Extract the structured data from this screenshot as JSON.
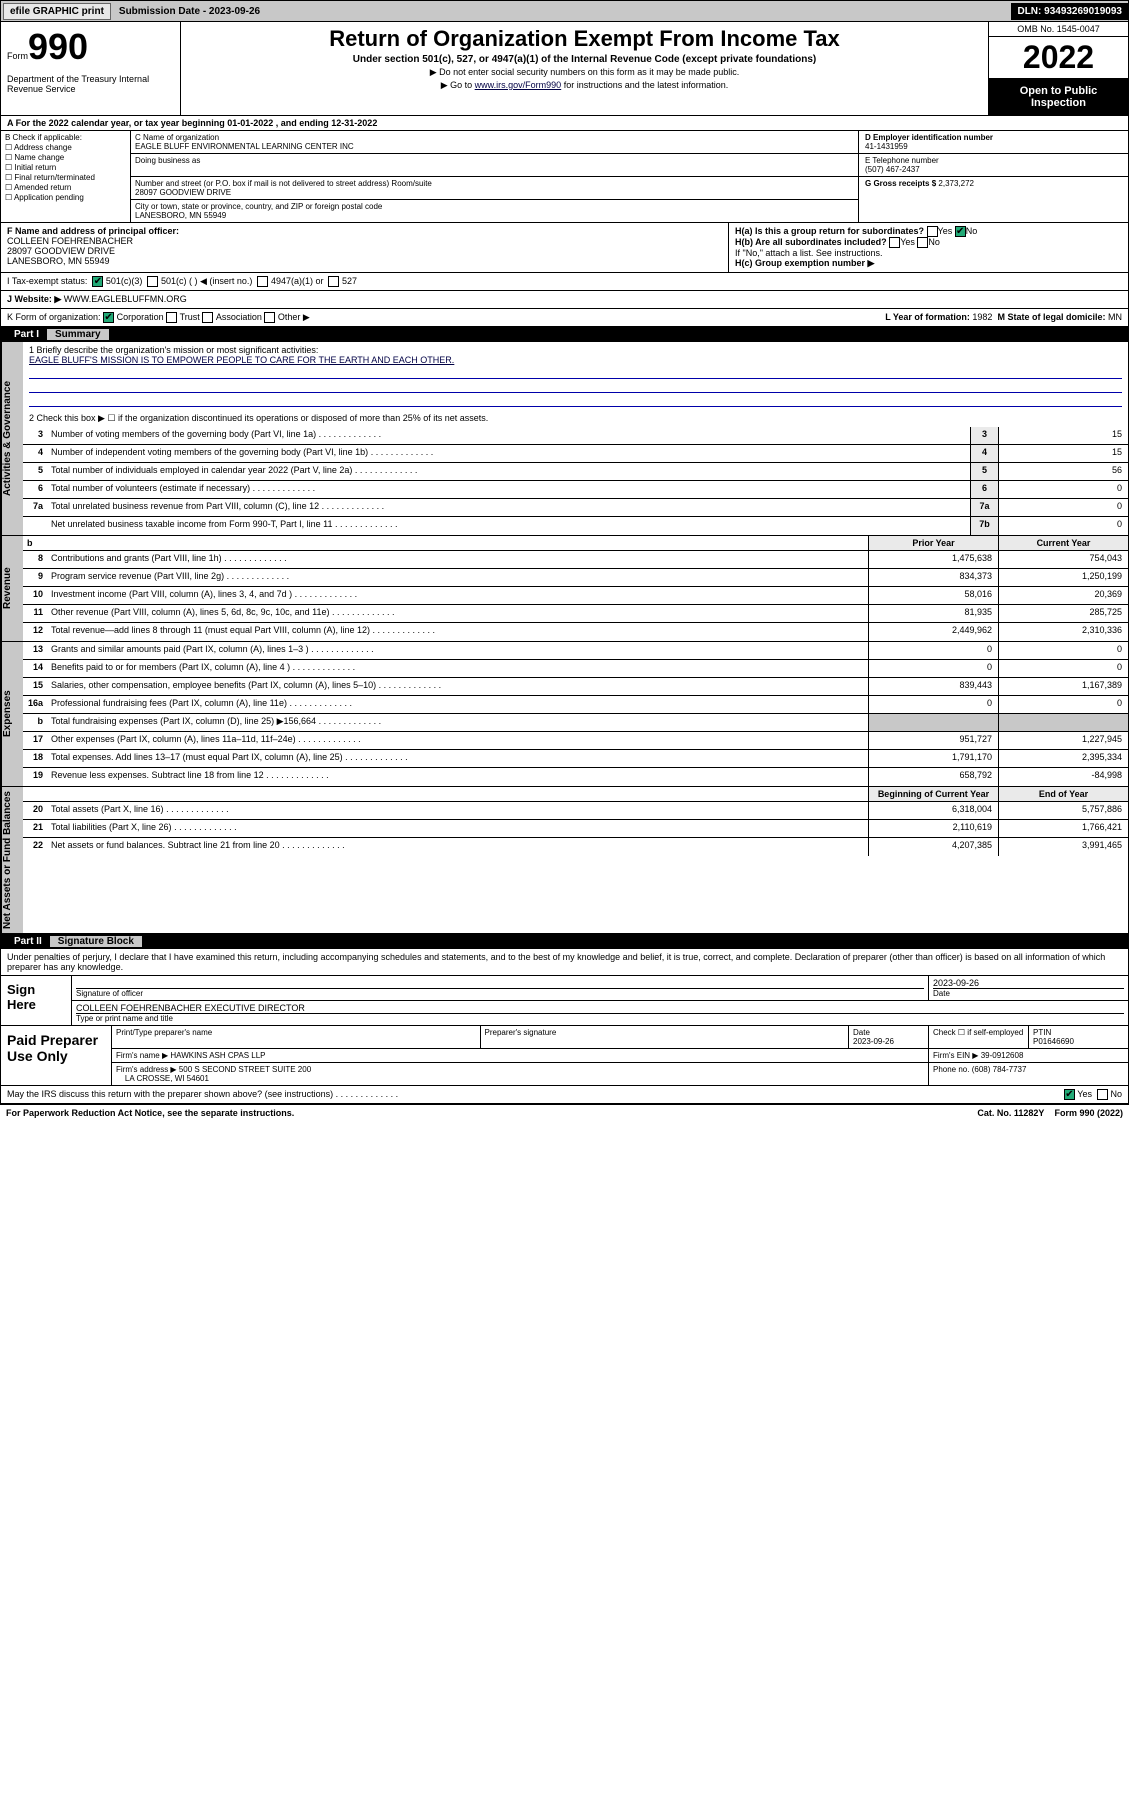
{
  "topbar": {
    "efile": "efile GRAPHIC print",
    "sub_label": "Submission Date - 2023-09-26",
    "dln": "DLN: 93493269019093"
  },
  "header": {
    "form_word": "Form",
    "form_num": "990",
    "dept": "Department of the Treasury\nInternal Revenue Service",
    "title": "Return of Organization Exempt From Income Tax",
    "sub1": "Under section 501(c), 527, or 4947(a)(1) of the Internal Revenue Code (except private foundations)",
    "sub2": "▶ Do not enter social security numbers on this form as it may be made public.",
    "sub3_pre": "▶ Go to ",
    "sub3_link": "www.irs.gov/Form990",
    "sub3_post": " for instructions and the latest information.",
    "omb": "OMB No. 1545-0047",
    "year": "2022",
    "open": "Open to Public Inspection"
  },
  "row_a": "A For the 2022 calendar year, or tax year beginning 01-01-2022   , and ending 12-31-2022",
  "col_b": {
    "title": "B Check if applicable:",
    "items": [
      "Address change",
      "Name change",
      "Initial return",
      "Final return/terminated",
      "Amended return",
      "Application pending"
    ]
  },
  "col_c": {
    "name_lbl": "C Name of organization",
    "name": "EAGLE BLUFF ENVIRONMENTAL LEARNING CENTER INC",
    "dba_lbl": "Doing business as",
    "addr_lbl": "Number and street (or P.O. box if mail is not delivered to street address)    Room/suite",
    "addr": "28097 GOODVIEW DRIVE",
    "city_lbl": "City or town, state or province, country, and ZIP or foreign postal code",
    "city": "LANESBORO, MN  55949"
  },
  "col_d": {
    "ein_lbl": "D Employer identification number",
    "ein": "41-1431959",
    "tel_lbl": "E Telephone number",
    "tel": "(507) 467-2437",
    "gross_lbl": "G Gross receipts $",
    "gross": "2,373,272"
  },
  "section_f": {
    "lbl": "F Name and address of principal officer:",
    "name": "COLLEEN FOEHRENBACHER",
    "addr1": "28097 GOODVIEW DRIVE",
    "addr2": "LANESBORO, MN  55949"
  },
  "section_h": {
    "ha": "H(a)  Is this a group return for subordinates?",
    "ha_yes": "Yes",
    "ha_no": "No",
    "hb": "H(b)  Are all subordinates included?",
    "hb_yes": "Yes",
    "hb_no": "No",
    "hb_note": "If \"No,\" attach a list. See instructions.",
    "hc": "H(c)  Group exemption number ▶"
  },
  "row_i": {
    "lbl": "I   Tax-exempt status:",
    "o1": "501(c)(3)",
    "o2": "501(c) (  ) ◀ (insert no.)",
    "o3": "4947(a)(1) or",
    "o4": "527"
  },
  "row_j": {
    "lbl": "J   Website: ▶",
    "val": "WWW.EAGLEBLUFFMN.ORG"
  },
  "row_k": {
    "lbl": "K Form of organization:",
    "o1": "Corporation",
    "o2": "Trust",
    "o3": "Association",
    "o4": "Other ▶",
    "l_lbl": "L Year of formation:",
    "l_val": "1982",
    "m_lbl": "M State of legal domicile:",
    "m_val": "MN"
  },
  "part1": {
    "num": "Part I",
    "title": "Summary"
  },
  "mission": {
    "line1_lbl": "1  Briefly describe the organization's mission or most significant activities:",
    "line1": "EAGLE BLUFF'S MISSION IS TO EMPOWER PEOPLE TO CARE FOR THE EARTH AND EACH OTHER.",
    "line2": "2  Check this box ▶ ☐ if the organization discontinued its operations or disposed of more than 25% of its net assets."
  },
  "gov_lines": [
    {
      "n": "3",
      "d": "Number of voting members of the governing body (Part VI, line 1a)",
      "b": "3",
      "v": "15"
    },
    {
      "n": "4",
      "d": "Number of independent voting members of the governing body (Part VI, line 1b)",
      "b": "4",
      "v": "15"
    },
    {
      "n": "5",
      "d": "Total number of individuals employed in calendar year 2022 (Part V, line 2a)",
      "b": "5",
      "v": "56"
    },
    {
      "n": "6",
      "d": "Total number of volunteers (estimate if necessary)",
      "b": "6",
      "v": "0"
    },
    {
      "n": "7a",
      "d": "Total unrelated business revenue from Part VIII, column (C), line 12",
      "b": "7a",
      "v": "0"
    },
    {
      "n": "",
      "d": "Net unrelated business taxable income from Form 990-T, Part I, line 11",
      "b": "7b",
      "v": "0"
    }
  ],
  "col_headers": {
    "b": "b",
    "prior": "Prior Year",
    "curr": "Current Year"
  },
  "rev_lines": [
    {
      "n": "8",
      "d": "Contributions and grants (Part VIII, line 1h)",
      "p": "1,475,638",
      "c": "754,043"
    },
    {
      "n": "9",
      "d": "Program service revenue (Part VIII, line 2g)",
      "p": "834,373",
      "c": "1,250,199"
    },
    {
      "n": "10",
      "d": "Investment income (Part VIII, column (A), lines 3, 4, and 7d )",
      "p": "58,016",
      "c": "20,369"
    },
    {
      "n": "11",
      "d": "Other revenue (Part VIII, column (A), lines 5, 6d, 8c, 9c, 10c, and 11e)",
      "p": "81,935",
      "c": "285,725"
    },
    {
      "n": "12",
      "d": "Total revenue—add lines 8 through 11 (must equal Part VIII, column (A), line 12)",
      "p": "2,449,962",
      "c": "2,310,336"
    }
  ],
  "exp_lines": [
    {
      "n": "13",
      "d": "Grants and similar amounts paid (Part IX, column (A), lines 1–3 )",
      "p": "0",
      "c": "0"
    },
    {
      "n": "14",
      "d": "Benefits paid to or for members (Part IX, column (A), line 4 )",
      "p": "0",
      "c": "0"
    },
    {
      "n": "15",
      "d": "Salaries, other compensation, employee benefits (Part IX, column (A), lines 5–10)",
      "p": "839,443",
      "c": "1,167,389"
    },
    {
      "n": "16a",
      "d": "Professional fundraising fees (Part IX, column (A), line 11e)",
      "p": "0",
      "c": "0"
    },
    {
      "n": "b",
      "d": "Total fundraising expenses (Part IX, column (D), line 25) ▶156,664",
      "p": "",
      "c": "",
      "grey": true
    },
    {
      "n": "17",
      "d": "Other expenses (Part IX, column (A), lines 11a–11d, 11f–24e)",
      "p": "951,727",
      "c": "1,227,945"
    },
    {
      "n": "18",
      "d": "Total expenses. Add lines 13–17 (must equal Part IX, column (A), line 25)",
      "p": "1,791,170",
      "c": "2,395,334"
    },
    {
      "n": "19",
      "d": "Revenue less expenses. Subtract line 18 from line 12",
      "p": "658,792",
      "c": "-84,998"
    }
  ],
  "na_headers": {
    "beg": "Beginning of Current Year",
    "end": "End of Year"
  },
  "na_lines": [
    {
      "n": "20",
      "d": "Total assets (Part X, line 16)",
      "p": "6,318,004",
      "c": "5,757,886"
    },
    {
      "n": "21",
      "d": "Total liabilities (Part X, line 26)",
      "p": "2,110,619",
      "c": "1,766,421"
    },
    {
      "n": "22",
      "d": "Net assets or fund balances. Subtract line 21 from line 20",
      "p": "4,207,385",
      "c": "3,991,465"
    }
  ],
  "vert_labels": {
    "gov": "Activities & Governance",
    "rev": "Revenue",
    "exp": "Expenses",
    "na": "Net Assets or Fund Balances"
  },
  "part2": {
    "num": "Part II",
    "title": "Signature Block"
  },
  "sig": {
    "decl": "Under penalties of perjury, I declare that I have examined this return, including accompanying schedules and statements, and to the best of my knowledge and belief, it is true, correct, and complete. Declaration of preparer (other than officer) is based on all information of which preparer has any knowledge.",
    "here": "Sign Here",
    "sig_lbl": "Signature of officer",
    "date": "2023-09-26",
    "date_lbl": "Date",
    "name": "COLLEEN FOEHRENBACHER  EXECUTIVE DIRECTOR",
    "name_lbl": "Type or print name and title"
  },
  "paid": {
    "lbl": "Paid Preparer Use Only",
    "h1": "Print/Type preparer's name",
    "h2": "Preparer's signature",
    "h3": "Date",
    "h3v": "2023-09-26",
    "h4": "Check ☐ if self-employed",
    "h5": "PTIN",
    "h5v": "P01646690",
    "firm_lbl": "Firm's name   ▶",
    "firm": "HAWKINS ASH CPAS LLP",
    "ein_lbl": "Firm's EIN ▶",
    "ein": "39-0912608",
    "addr_lbl": "Firm's address ▶",
    "addr1": "500 S SECOND STREET SUITE 200",
    "addr2": "LA CROSSE, WI  54601",
    "ph_lbl": "Phone no.",
    "ph": "(608) 784-7737"
  },
  "discuss": {
    "q": "May the IRS discuss this return with the preparer shown above? (see instructions)",
    "yes": "Yes",
    "no": "No"
  },
  "footer": {
    "l": "For Paperwork Reduction Act Notice, see the separate instructions.",
    "c": "Cat. No. 11282Y",
    "r": "Form 990 (2022)"
  }
}
